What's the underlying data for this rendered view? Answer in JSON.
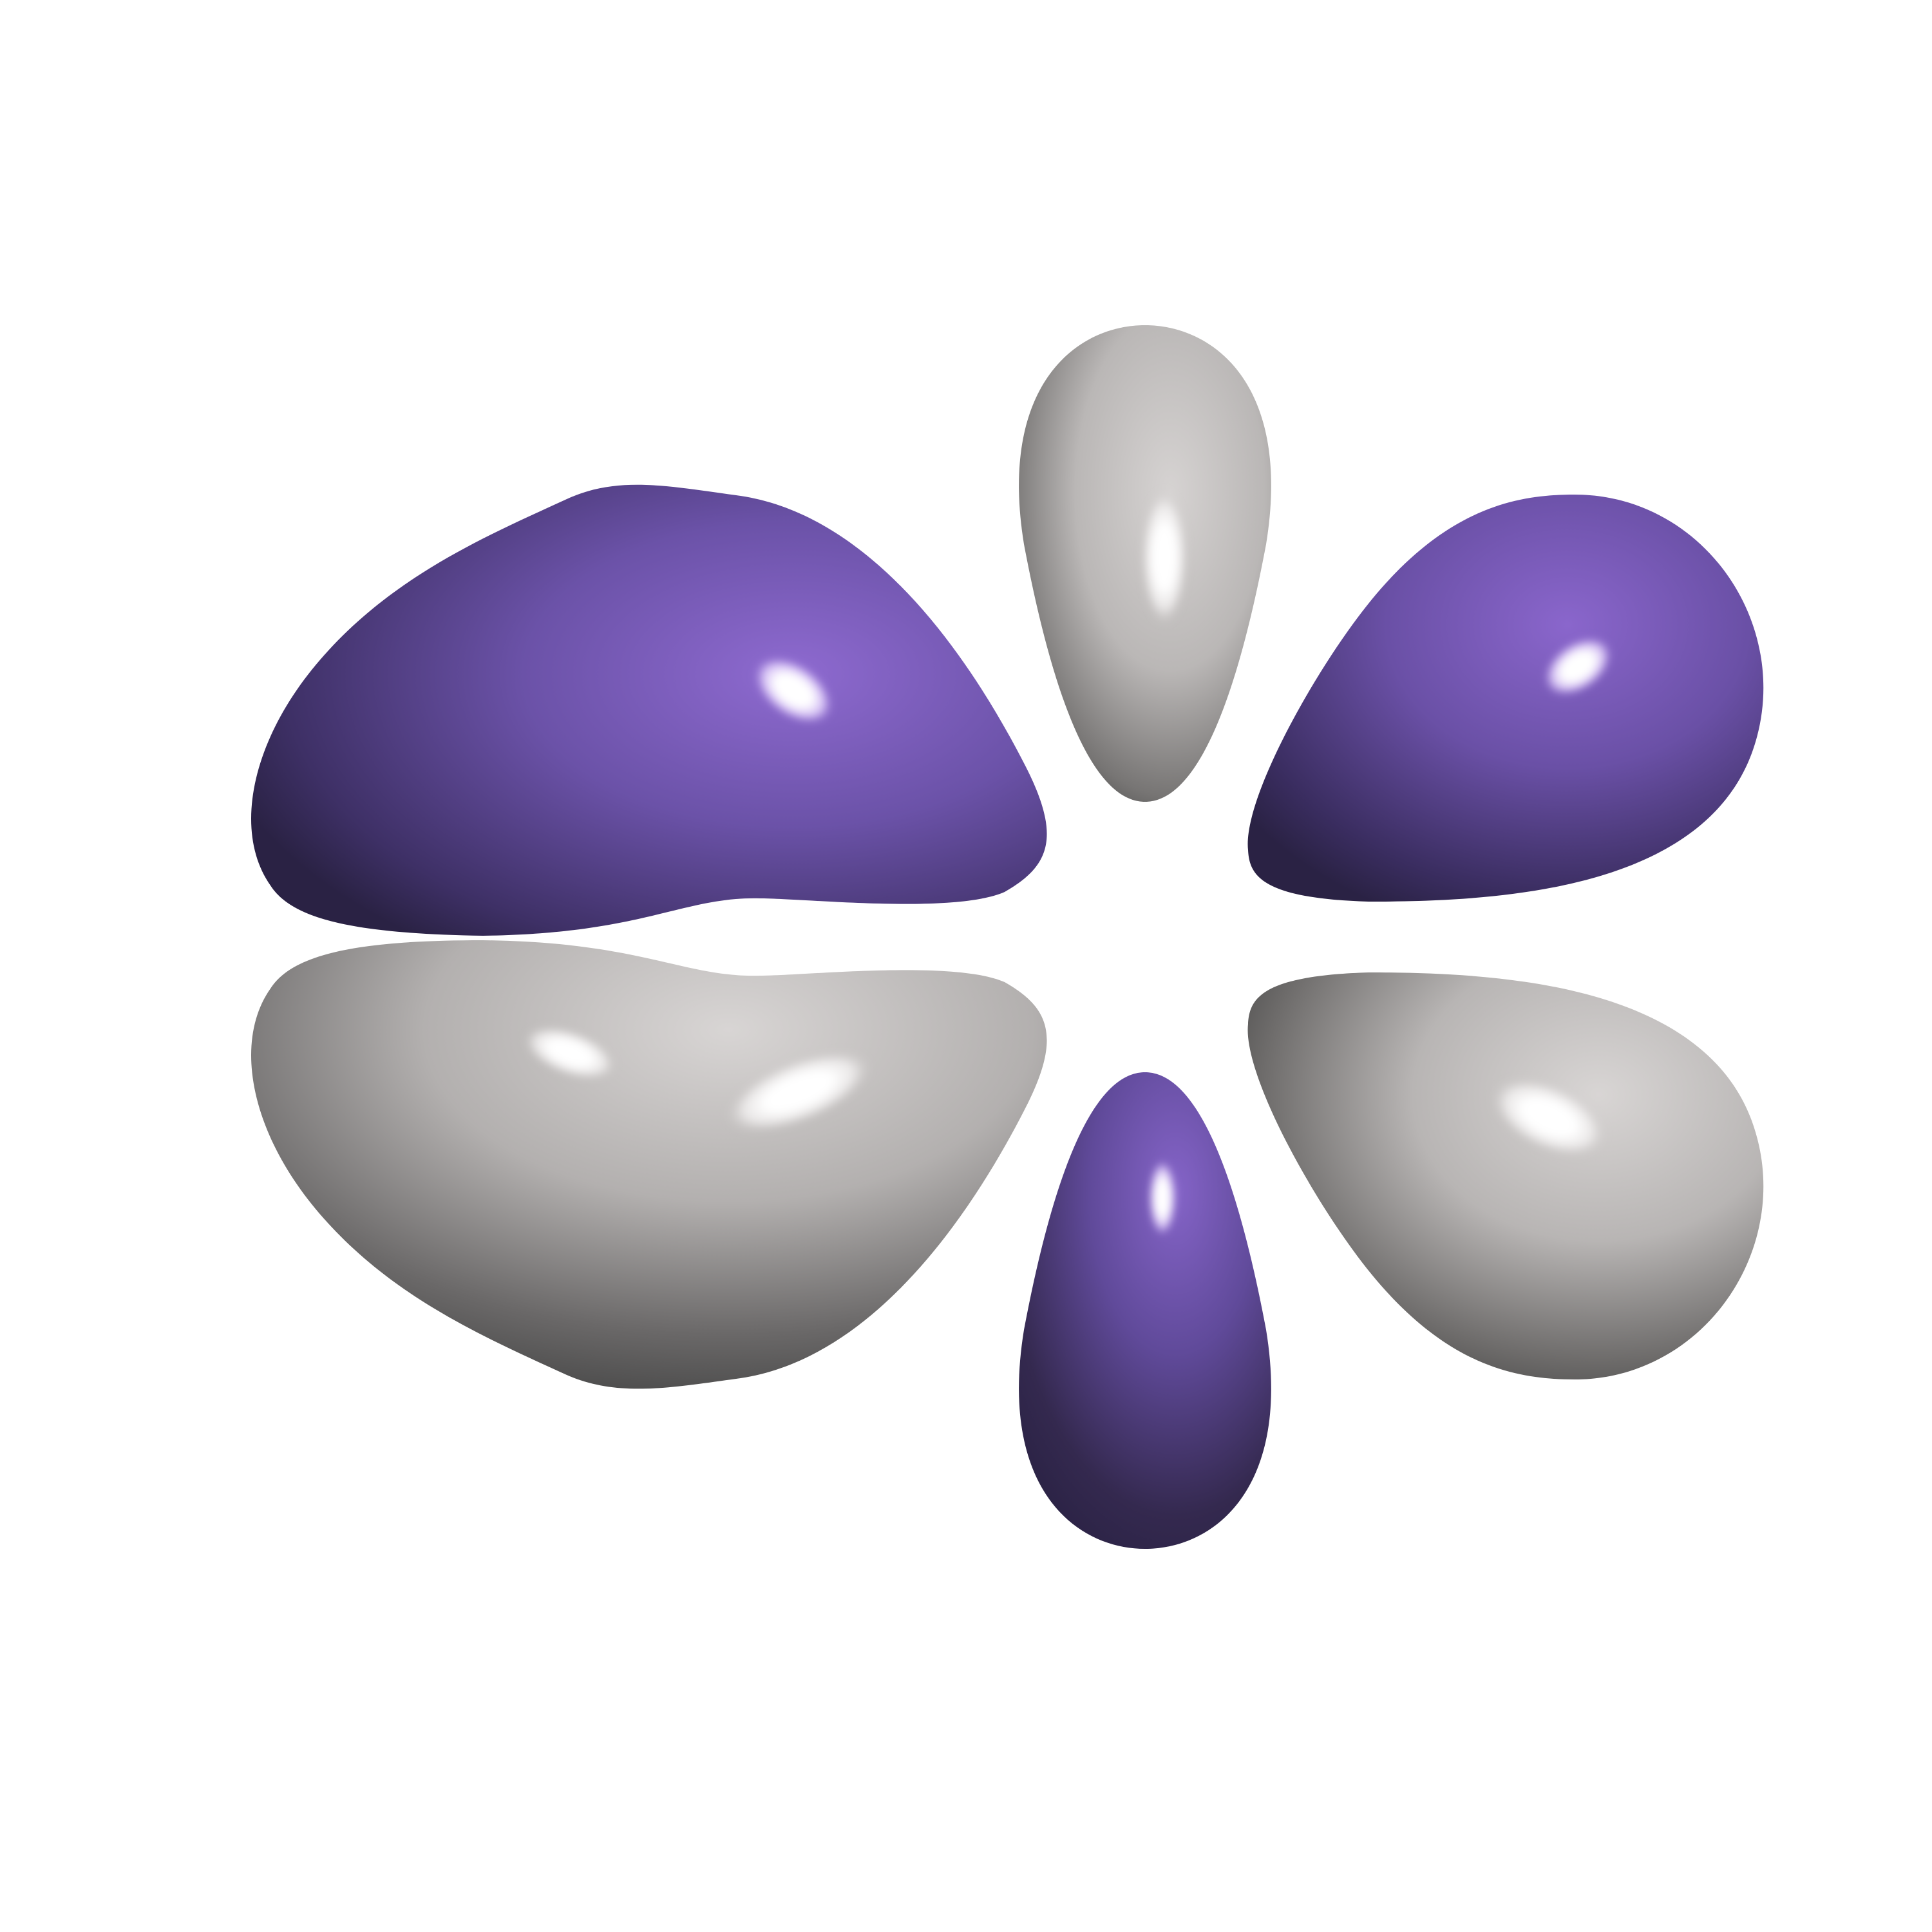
{
  "background_color": "#ffffff",
  "subject": "molecular-orbital-isosurface",
  "lobe_count": 6,
  "phase_colors": {
    "positive": {
      "base": "#6b52a8",
      "light": "#8e6ad0",
      "dark": "#2a2244",
      "highlight": "#ffffff"
    },
    "negative": {
      "base": "#a9a7a6",
      "light": "#cfcccb",
      "dark": "#474747",
      "highlight": "#ffffff"
    }
  },
  "lobes": [
    {
      "name": "lobe-upper-left",
      "phase": "positive"
    },
    {
      "name": "lobe-upper-center",
      "phase": "negative"
    },
    {
      "name": "lobe-upper-right",
      "phase": "positive"
    },
    {
      "name": "lobe-lower-left",
      "phase": "negative"
    },
    {
      "name": "lobe-lower-center",
      "phase": "positive"
    },
    {
      "name": "lobe-lower-right",
      "phase": "negative"
    }
  ]
}
